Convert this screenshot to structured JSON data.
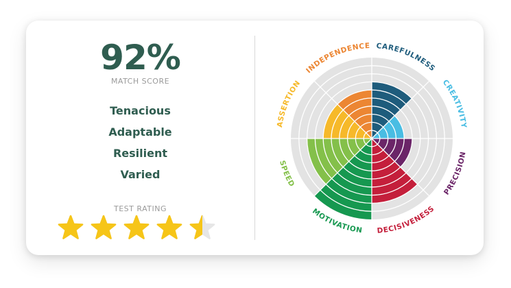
{
  "score": {
    "value": "92%",
    "label": "MATCH SCORE"
  },
  "traits": [
    "Tenacious",
    "Adaptable",
    "Resilient",
    "Varied"
  ],
  "rating": {
    "label": "TEST RATING",
    "value": 4.5,
    "max": 5,
    "star_color": "#f6c518",
    "empty_color": "#e6e6e6"
  },
  "wheel": {
    "rings": 10,
    "background_color": "#e3e3e3",
    "segments": [
      {
        "label": "CAREFULNESS",
        "value": 7,
        "color": "#1e5c7c"
      },
      {
        "label": "CREATIVITY",
        "value": 4,
        "color": "#49bde3"
      },
      {
        "label": "PRECISION",
        "value": 5,
        "color": "#6b2568"
      },
      {
        "label": "DECISIVENESS",
        "value": 8,
        "color": "#c41f3b"
      },
      {
        "label": "MOTIVATION",
        "value": 10,
        "color": "#169850"
      },
      {
        "label": "SPEED",
        "value": 8,
        "color": "#84c04a"
      },
      {
        "label": "ASSERTION",
        "value": 6,
        "color": "#f6b92a"
      },
      {
        "label": "INDEPENDENCE",
        "value": 6,
        "color": "#ec8633"
      }
    ]
  }
}
